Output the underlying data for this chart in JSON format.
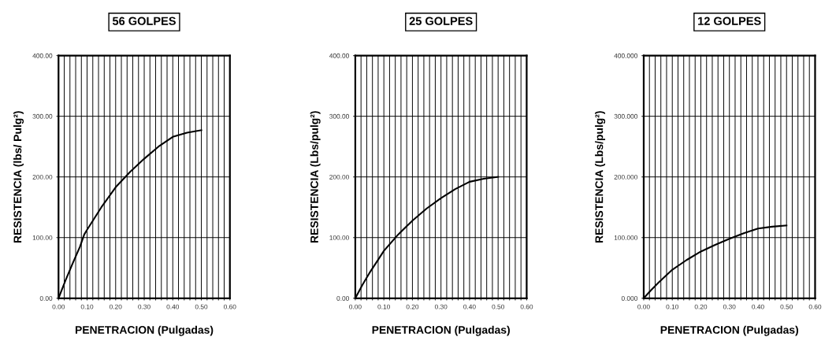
{
  "chart_data": [
    {
      "type": "line",
      "title": "56 GOLPES",
      "xlabel": "PENETRACION (Pulgadas)",
      "ylabel": "RESISTENCIA (lbs/ Pulg²)",
      "grid": true,
      "marker": "none",
      "line_style": "solid",
      "x": [
        0,
        0.025,
        0.05,
        0.075,
        0.09,
        0.1,
        0.15,
        0.2,
        0.25,
        0.3,
        0.35,
        0.4,
        0.45,
        0.5
      ],
      "series": [
        {
          "color": "#000000",
          "values": [
            0,
            30,
            58,
            85,
            105,
            113,
            150,
            183,
            208,
            230,
            250,
            266,
            273,
            277
          ]
        }
      ],
      "xlim": [
        0,
        0.6
      ],
      "ylim": [
        0,
        400
      ],
      "xticks": [
        {
          "value": 0,
          "label": "0.00"
        },
        {
          "value": 0.02,
          "label": null
        },
        {
          "value": 0.04,
          "label": null
        },
        {
          "value": 0.06,
          "label": null
        },
        {
          "value": 0.08,
          "label": null
        },
        {
          "value": 0.1,
          "label": "0.10"
        },
        {
          "value": 0.12,
          "label": null
        },
        {
          "value": 0.14,
          "label": null
        },
        {
          "value": 0.16,
          "label": null
        },
        {
          "value": 0.18,
          "label": null
        },
        {
          "value": 0.2,
          "label": "0.20"
        },
        {
          "value": 0.22,
          "label": null
        },
        {
          "value": 0.24,
          "label": null
        },
        {
          "value": 0.26,
          "label": null
        },
        {
          "value": 0.28,
          "label": null
        },
        {
          "value": 0.3,
          "label": "0.30"
        },
        {
          "value": 0.32,
          "label": null
        },
        {
          "value": 0.34,
          "label": null
        },
        {
          "value": 0.36,
          "label": null
        },
        {
          "value": 0.38,
          "label": null
        },
        {
          "value": 0.4,
          "label": "0.40"
        },
        {
          "value": 0.42,
          "label": null
        },
        {
          "value": 0.44,
          "label": null
        },
        {
          "value": 0.46,
          "label": null
        },
        {
          "value": 0.48,
          "label": null
        },
        {
          "value": 0.5,
          "label": "0.50"
        },
        {
          "value": 0.52,
          "label": null
        },
        {
          "value": 0.54,
          "label": null
        },
        {
          "value": 0.56,
          "label": null
        },
        {
          "value": 0.58,
          "label": null
        },
        {
          "value": 0.6,
          "label": "0.60"
        }
      ],
      "yticks": [
        {
          "value": 0,
          "label": "0.00"
        },
        {
          "value": 100,
          "label": "100.00"
        },
        {
          "value": 200,
          "label": "200.00"
        },
        {
          "value": 300,
          "label": "300.00"
        },
        {
          "value": 400,
          "label": "400.00"
        }
      ]
    },
    {
      "type": "line",
      "title": "25 GOLPES",
      "xlabel": "PENETRACION (Pulgadas)",
      "ylabel": "RESISTENCIA (Lbs/pulg²)",
      "grid": true,
      "marker": "none",
      "line_style": "solid",
      "x": [
        0,
        0.025,
        0.05,
        0.075,
        0.1,
        0.15,
        0.2,
        0.25,
        0.3,
        0.35,
        0.4,
        0.45,
        0.5
      ],
      "series": [
        {
          "color": "#000000",
          "values": [
            0,
            22,
            42,
            60,
            78,
            105,
            128,
            148,
            165,
            180,
            192,
            197,
            200
          ]
        }
      ],
      "xlim": [
        0,
        0.6
      ],
      "ylim": [
        0,
        400
      ],
      "xticks": [
        {
          "value": 0,
          "label": "0.00"
        },
        {
          "value": 0.02,
          "label": null
        },
        {
          "value": 0.04,
          "label": null
        },
        {
          "value": 0.06,
          "label": null
        },
        {
          "value": 0.08,
          "label": null
        },
        {
          "value": 0.1,
          "label": "0.10"
        },
        {
          "value": 0.12,
          "label": null
        },
        {
          "value": 0.14,
          "label": null
        },
        {
          "value": 0.16,
          "label": null
        },
        {
          "value": 0.18,
          "label": null
        },
        {
          "value": 0.2,
          "label": "0.20"
        },
        {
          "value": 0.22,
          "label": null
        },
        {
          "value": 0.24,
          "label": null
        },
        {
          "value": 0.26,
          "label": null
        },
        {
          "value": 0.28,
          "label": null
        },
        {
          "value": 0.3,
          "label": "0.30"
        },
        {
          "value": 0.32,
          "label": null
        },
        {
          "value": 0.34,
          "label": null
        },
        {
          "value": 0.36,
          "label": null
        },
        {
          "value": 0.38,
          "label": null
        },
        {
          "value": 0.4,
          "label": "0.40"
        },
        {
          "value": 0.42,
          "label": null
        },
        {
          "value": 0.44,
          "label": null
        },
        {
          "value": 0.46,
          "label": null
        },
        {
          "value": 0.48,
          "label": null
        },
        {
          "value": 0.5,
          "label": "0.50"
        },
        {
          "value": 0.52,
          "label": null
        },
        {
          "value": 0.54,
          "label": null
        },
        {
          "value": 0.56,
          "label": null
        },
        {
          "value": 0.58,
          "label": null
        },
        {
          "value": 0.6,
          "label": "0.60"
        }
      ],
      "yticks": [
        {
          "value": 0,
          "label": "0.00"
        },
        {
          "value": 100,
          "label": "100.00"
        },
        {
          "value": 200,
          "label": "200.00"
        },
        {
          "value": 300,
          "label": "300.00"
        },
        {
          "value": 400,
          "label": "400.00"
        }
      ]
    },
    {
      "type": "line",
      "title": "12 GOLPES",
      "xlabel": "PENETRACION (Pulgadas)",
      "ylabel": "RESISTENCIA (Lbs/pulg²)",
      "grid": true,
      "marker": "none",
      "line_style": "solid",
      "x": [
        0,
        0.025,
        0.05,
        0.075,
        0.1,
        0.15,
        0.2,
        0.25,
        0.3,
        0.35,
        0.4,
        0.45,
        0.5
      ],
      "series": [
        {
          "color": "#000000",
          "values": [
            0,
            13,
            25,
            36,
            47,
            63,
            77,
            88,
            98,
            107,
            115,
            118,
            120
          ]
        }
      ],
      "xlim": [
        0,
        0.6
      ],
      "ylim": [
        0,
        400
      ],
      "xticks": [
        {
          "value": 0,
          "label": "0.00"
        },
        {
          "value": 0.02,
          "label": null
        },
        {
          "value": 0.04,
          "label": null
        },
        {
          "value": 0.06,
          "label": null
        },
        {
          "value": 0.08,
          "label": null
        },
        {
          "value": 0.1,
          "label": "0.10"
        },
        {
          "value": 0.12,
          "label": null
        },
        {
          "value": 0.14,
          "label": null
        },
        {
          "value": 0.16,
          "label": null
        },
        {
          "value": 0.18,
          "label": null
        },
        {
          "value": 0.2,
          "label": "0.20"
        },
        {
          "value": 0.22,
          "label": null
        },
        {
          "value": 0.24,
          "label": null
        },
        {
          "value": 0.26,
          "label": null
        },
        {
          "value": 0.28,
          "label": null
        },
        {
          "value": 0.3,
          "label": "0.30"
        },
        {
          "value": 0.32,
          "label": null
        },
        {
          "value": 0.34,
          "label": null
        },
        {
          "value": 0.36,
          "label": null
        },
        {
          "value": 0.38,
          "label": null
        },
        {
          "value": 0.4,
          "label": "0.40"
        },
        {
          "value": 0.42,
          "label": null
        },
        {
          "value": 0.44,
          "label": null
        },
        {
          "value": 0.46,
          "label": null
        },
        {
          "value": 0.48,
          "label": null
        },
        {
          "value": 0.5,
          "label": "0.50"
        },
        {
          "value": 0.52,
          "label": null
        },
        {
          "value": 0.54,
          "label": null
        },
        {
          "value": 0.56,
          "label": null
        },
        {
          "value": 0.58,
          "label": null
        },
        {
          "value": 0.6,
          "label": "0.60"
        }
      ],
      "yticks": [
        {
          "value": 0,
          "label": "0.000"
        },
        {
          "value": 100,
          "label": "100.000"
        },
        {
          "value": 200,
          "label": "200.000"
        },
        {
          "value": 300,
          "label": "300.000"
        },
        {
          "value": 400,
          "label": "400.000"
        }
      ]
    }
  ]
}
